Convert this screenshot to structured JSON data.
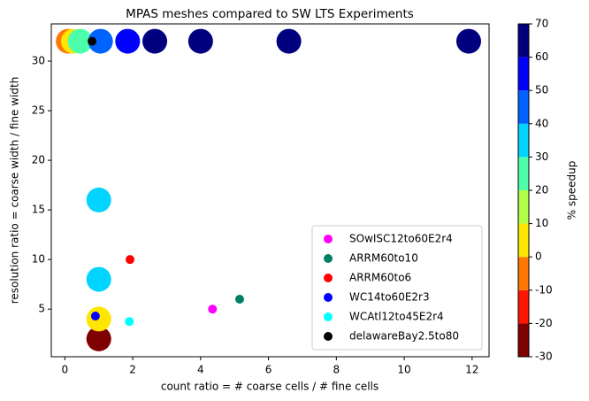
{
  "chart_data": {
    "type": "scatter",
    "title": "MPAS meshes compared to SW LTS Experiments",
    "xlabel": "count ratio = # coarse cells / # fine cells",
    "ylabel": "resolution ratio = coarse width / fine width",
    "xlim": [
      -0.4,
      12.5
    ],
    "ylim": [
      0.2,
      33.75
    ],
    "xticks": [
      0,
      2,
      4,
      6,
      8,
      10,
      12
    ],
    "yticks": [
      5,
      10,
      15,
      20,
      25,
      30
    ],
    "legend": "lower right",
    "series": [
      {
        "name": "SOwISC12to60E2r4",
        "color": "#ff00ff",
        "x": [
          4.35
        ],
        "values": [
          5
        ]
      },
      {
        "name": "ARRM60to10",
        "color": "#007f66",
        "x": [
          5.15
        ],
        "values": [
          6
        ]
      },
      {
        "name": "ARRM60to6",
        "color": "#ff0000",
        "x": [
          1.92
        ],
        "values": [
          10
        ]
      },
      {
        "name": "WC14to60E2r3",
        "color": "#0000ff",
        "x": [
          0.9
        ],
        "values": [
          4.3
        ]
      },
      {
        "name": "WCAtl12to45E2r4",
        "color": "#00ffff",
        "x": [
          1.9
        ],
        "values": [
          3.75
        ]
      },
      {
        "name": "delawareBay2.5to80",
        "color": "#000000",
        "x": [
          0.8
        ],
        "values": [
          32
        ]
      }
    ],
    "experiments": {
      "x": [
        1,
        1,
        1,
        1,
        0.1,
        0.25,
        0.45,
        1.05,
        1.85,
        2.65,
        4,
        6.6,
        11.9
      ],
      "values": [
        2,
        4,
        8,
        16,
        32,
        32,
        32,
        32,
        32,
        32,
        32,
        32,
        32
      ],
      "speedup": [
        -25,
        5,
        35,
        35,
        -5,
        5,
        25,
        45,
        55,
        65,
        65,
        65,
        65
      ]
    },
    "colorbar": {
      "label": "% speedup",
      "clim": [
        -30,
        70
      ],
      "ticks": [
        -30,
        -20,
        -10,
        0,
        10,
        20,
        30,
        40,
        50,
        60,
        70
      ],
      "colors": [
        "#7f0000",
        "#ff1600",
        "#ff7700",
        "#ffe600",
        "#b1ff46",
        "#4dffaa",
        "#00d4ff",
        "#0062ff",
        "#0000ff",
        "#00007f"
      ]
    }
  }
}
